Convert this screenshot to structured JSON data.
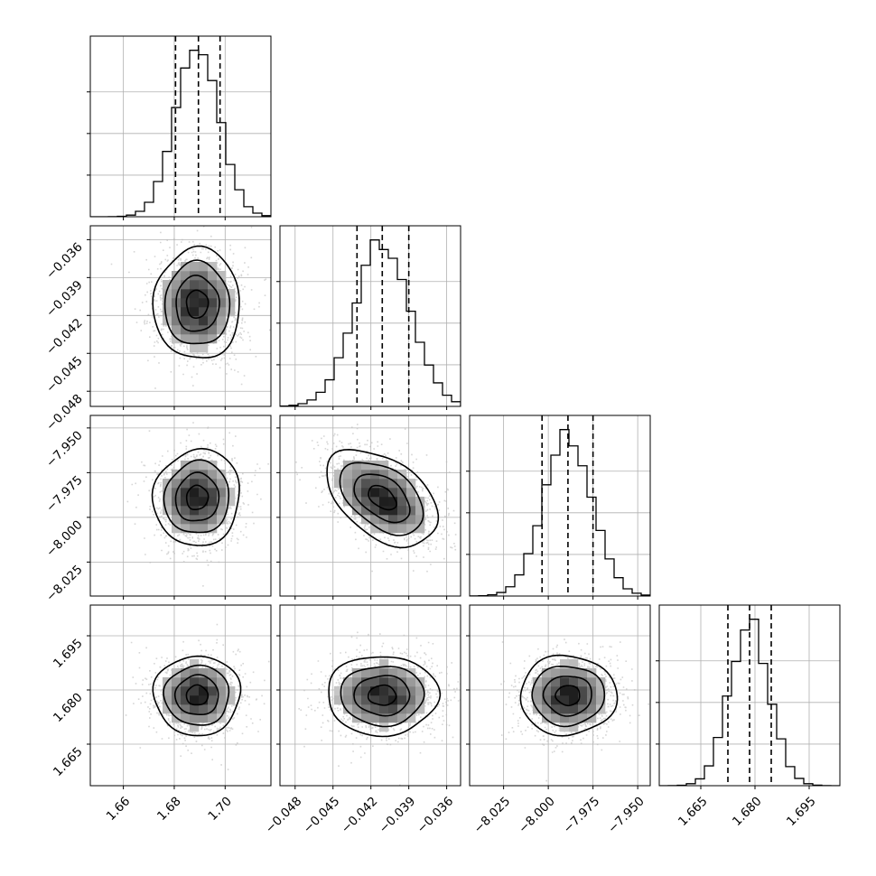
{
  "chart_data": {
    "type": "corner",
    "title": "",
    "parameters": 4,
    "axis_labels": [
      "",
      "",
      "",
      ""
    ],
    "ranges": [
      [
        1.647,
        1.718
      ],
      [
        -0.0492,
        -0.0349
      ],
      [
        -8.044,
        -7.943
      ],
      [
        1.6535,
        1.7035
      ]
    ],
    "ticks": [
      [
        "1.66",
        "1.68",
        "1.70"
      ],
      [
        "−0.048",
        "−0.045",
        "−0.042",
        "−0.039",
        "−0.036"
      ],
      [
        "−8.025",
        "−8.000",
        "−7.975",
        "−7.950"
      ],
      [
        "1.665",
        "1.680",
        "1.695"
      ]
    ],
    "tick_values": [
      [
        1.66,
        1.68,
        1.7
      ],
      [
        -0.048,
        -0.045,
        -0.042,
        -0.039,
        -0.036
      ],
      [
        -8.025,
        -8.0,
        -7.975,
        -7.95
      ],
      [
        1.665,
        1.68,
        1.695
      ]
    ],
    "means": [
      1.689,
      -0.0411,
      -7.989,
      1.6785
    ],
    "sigmas": [
      0.0085,
      0.0022,
      0.0135,
      0.0055
    ],
    "correlations": [
      [
        0,
        1,
        0.0
      ],
      [
        0,
        2,
        0.05
      ],
      [
        0,
        3,
        0.0
      ],
      [
        1,
        2,
        -0.45
      ],
      [
        1,
        3,
        0.0
      ],
      [
        2,
        3,
        0.0
      ]
    ],
    "quantiles": [
      [
        1.6805,
        1.6895,
        1.698
      ],
      [
        -0.0431,
        -0.0411,
        -0.039
      ],
      [
        -8.0035,
        -7.989,
        -7.975
      ],
      [
        1.6725,
        1.6785,
        1.6845
      ]
    ],
    "histogram_bins": 20,
    "contour_levels_sigma": [
      0.5,
      1.0,
      1.5,
      2.0
    ],
    "grid": true,
    "colors": {
      "line": "#000000",
      "points": "#bbbbbb",
      "grid": "#b0b0b0"
    }
  }
}
